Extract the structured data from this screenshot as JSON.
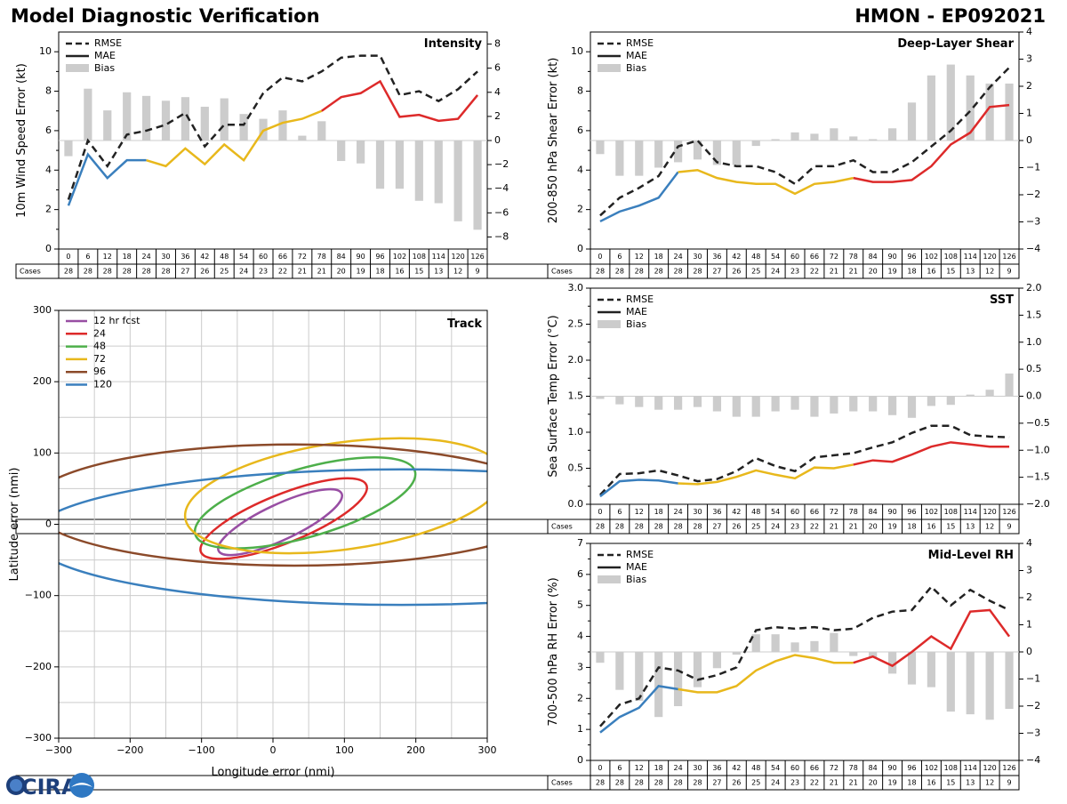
{
  "header": {
    "title": "Model Diagnostic Verification",
    "model": "HMON - EP092021"
  },
  "logo": {
    "text": "CIRA"
  },
  "colors": {
    "early": "#3a7fbd",
    "mid": "#e8b81c",
    "late": "#dd2a2a",
    "rmse": "#222222",
    "bias": "#cccccc"
  },
  "hours": [
    "0",
    "6",
    "12",
    "18",
    "24",
    "30",
    "36",
    "42",
    "48",
    "54",
    "60",
    "66",
    "72",
    "78",
    "84",
    "90",
    "96",
    "102",
    "108",
    "114",
    "120",
    "126"
  ],
  "legend_labels": {
    "rmse": "RMSE",
    "mae": "MAE",
    "bias": "Bias",
    "cases": "Cases"
  },
  "chart_data": [
    {
      "id": "intensity",
      "type": "line",
      "title": "Intensity",
      "ylabel": "10m Wind Speed Error (kt)",
      "ylim": [
        0,
        11
      ],
      "yticks": [
        0,
        2,
        4,
        6,
        8,
        10
      ],
      "y2lim": [
        -9,
        9
      ],
      "y2ticks": [
        -8,
        -6,
        -4,
        -2,
        0,
        2,
        4,
        6,
        8
      ],
      "rmse": [
        2.5,
        5.5,
        4.2,
        5.8,
        6.0,
        6.3,
        6.9,
        5.2,
        6.3,
        6.3,
        7.9,
        8.7,
        8.5,
        9.0,
        9.7,
        9.8,
        9.8,
        7.8,
        8.0,
        7.5,
        8.1,
        9.0
      ],
      "mae": [
        2.2,
        4.8,
        3.6,
        4.5,
        4.5,
        4.2,
        5.1,
        4.3,
        5.3,
        4.5,
        6.0,
        6.4,
        6.6,
        7.0,
        7.7,
        7.9,
        8.5,
        6.7,
        6.8,
        6.5,
        6.6,
        7.8
      ],
      "bias": [
        -1.3,
        4.3,
        2.5,
        4.0,
        3.7,
        3.3,
        3.6,
        2.8,
        3.5,
        2.2,
        1.8,
        2.5,
        0.4,
        1.6,
        -1.7,
        -1.9,
        -4.0,
        -4.0,
        -5.0,
        -5.2,
        -6.7,
        -7.4
      ],
      "cases": [
        28,
        28,
        28,
        28,
        28,
        28,
        27,
        26,
        25,
        24,
        23,
        22,
        21,
        21,
        20,
        19,
        18,
        16,
        15,
        13,
        12,
        9
      ]
    },
    {
      "id": "shear",
      "type": "line",
      "title": "Deep-Layer Shear",
      "ylabel": "200-850 hPa Shear Error (kt)",
      "ylim": [
        0,
        11
      ],
      "yticks": [
        0,
        2,
        4,
        6,
        8,
        10
      ],
      "y2lim": [
        -4,
        4
      ],
      "y2ticks": [
        -4,
        -3,
        -2,
        -1,
        0,
        1,
        2,
        3,
        4
      ],
      "rmse": [
        1.7,
        2.6,
        3.1,
        3.7,
        5.2,
        5.5,
        4.4,
        4.2,
        4.2,
        3.9,
        3.3,
        4.2,
        4.2,
        4.5,
        3.9,
        3.9,
        4.4,
        5.2,
        6.0,
        7.0,
        8.2,
        9.2
      ],
      "mae": [
        1.4,
        1.9,
        2.2,
        2.6,
        3.9,
        4.0,
        3.6,
        3.4,
        3.3,
        3.3,
        2.8,
        3.3,
        3.4,
        3.6,
        3.4,
        3.4,
        3.5,
        4.2,
        5.3,
        5.9,
        7.2,
        7.3
      ],
      "bias": [
        -0.5,
        -1.3,
        -1.3,
        -1.0,
        -0.8,
        -0.7,
        -0.9,
        -0.9,
        -0.2,
        0.05,
        0.3,
        0.25,
        0.45,
        0.15,
        0.05,
        0.45,
        1.4,
        2.4,
        2.8,
        2.4,
        2.1,
        2.1
      ],
      "cases": [
        28,
        28,
        28,
        28,
        28,
        28,
        27,
        26,
        25,
        24,
        23,
        22,
        21,
        21,
        20,
        19,
        18,
        16,
        15,
        13,
        12,
        9
      ]
    },
    {
      "id": "sst",
      "type": "line",
      "title": "SST",
      "ylabel": "Sea Surface Temp Error (°C)",
      "ylim": [
        0,
        3.0
      ],
      "yticks": [
        0.0,
        0.5,
        1.0,
        1.5,
        2.0,
        2.5,
        3.0
      ],
      "y2lim": [
        -2.0,
        2.0
      ],
      "y2ticks": [
        -2.0,
        -1.5,
        -1.0,
        -0.5,
        0.0,
        0.5,
        1.0,
        1.5,
        2.0
      ],
      "rmse": [
        0.13,
        0.42,
        0.43,
        0.47,
        0.4,
        0.32,
        0.35,
        0.46,
        0.64,
        0.53,
        0.46,
        0.65,
        0.68,
        0.71,
        0.79,
        0.86,
        0.99,
        1.09,
        1.09,
        0.96,
        0.94,
        0.93
      ],
      "mae": [
        0.11,
        0.32,
        0.34,
        0.33,
        0.29,
        0.28,
        0.31,
        0.38,
        0.47,
        0.41,
        0.36,
        0.51,
        0.5,
        0.55,
        0.61,
        0.59,
        0.69,
        0.8,
        0.86,
        0.83,
        0.8,
        0.8
      ],
      "bias": [
        -0.05,
        -0.15,
        -0.2,
        -0.25,
        -0.25,
        -0.2,
        -0.28,
        -0.38,
        -0.38,
        -0.28,
        -0.25,
        -0.38,
        -0.32,
        -0.28,
        -0.28,
        -0.35,
        -0.4,
        -0.18,
        -0.16,
        0.03,
        0.12,
        0.42
      ],
      "cases": [
        28,
        28,
        28,
        28,
        28,
        28,
        27,
        26,
        25,
        24,
        23,
        22,
        21,
        21,
        20,
        19,
        18,
        16,
        15,
        13,
        12,
        9
      ]
    },
    {
      "id": "rh",
      "type": "line",
      "title": "Mid-Level RH",
      "ylabel": "700-500 hPa RH Error (%)",
      "ylim": [
        0,
        7
      ],
      "yticks": [
        0,
        1,
        2,
        3,
        4,
        5,
        6,
        7
      ],
      "y2lim": [
        -4,
        4
      ],
      "y2ticks": [
        -4,
        -3,
        -2,
        -1,
        0,
        1,
        2,
        3,
        4
      ],
      "rmse": [
        1.1,
        1.8,
        2.0,
        3.0,
        2.9,
        2.6,
        2.75,
        3.0,
        4.2,
        4.3,
        4.25,
        4.3,
        4.2,
        4.25,
        4.6,
        4.8,
        4.85,
        5.6,
        5.0,
        5.5,
        5.15,
        4.85
      ],
      "mae": [
        0.9,
        1.4,
        1.7,
        2.4,
        2.3,
        2.2,
        2.2,
        2.4,
        2.9,
        3.2,
        3.4,
        3.3,
        3.15,
        3.15,
        3.35,
        3.05,
        3.5,
        4.0,
        3.6,
        4.8,
        4.85,
        4.0
      ],
      "bias": [
        -0.4,
        -1.4,
        -1.8,
        -2.4,
        -2.0,
        -1.3,
        -0.6,
        -0.1,
        0.65,
        0.65,
        0.35,
        0.4,
        0.7,
        -0.15,
        -0.2,
        -0.8,
        -1.2,
        -1.3,
        -2.2,
        -2.3,
        -2.5,
        -2.1
      ],
      "cases": [
        28,
        28,
        28,
        28,
        28,
        28,
        27,
        26,
        25,
        24,
        23,
        22,
        21,
        21,
        20,
        19,
        18,
        16,
        15,
        13,
        12,
        9
      ]
    },
    {
      "id": "track",
      "type": "ellipse",
      "title": "Track",
      "xlabel": "Longitude error (nmi)",
      "ylabel": "Latitude error (nmi)",
      "xlim": [
        -300,
        300
      ],
      "ylim": [
        -300,
        300
      ],
      "xticks": [
        -300,
        -200,
        -100,
        0,
        100,
        200,
        300
      ],
      "yticks": [
        -300,
        -200,
        -100,
        0,
        100,
        200,
        300
      ],
      "legend_position": "top-left",
      "ellipses": [
        {
          "label": "12 hr fcst",
          "color": "#984ea3",
          "cx": 10,
          "cy": 3,
          "rx": 95,
          "ry": 25,
          "angle": 25
        },
        {
          "label": "24",
          "color": "#dd2a2a",
          "cx": 15,
          "cy": 8,
          "rx": 125,
          "ry": 34,
          "angle": 22
        },
        {
          "label": "48",
          "color": "#4daf4a",
          "cx": 45,
          "cy": 30,
          "rx": 160,
          "ry": 48,
          "angle": 16
        },
        {
          "label": "72",
          "color": "#e8b81c",
          "cx": 100,
          "cy": 40,
          "rx": 225,
          "ry": 75,
          "angle": 8
        },
        {
          "label": "96",
          "color": "#8b4a2a",
          "cx": 30,
          "cy": 27,
          "rx": 370,
          "ry": 85,
          "angle": 0
        },
        {
          "label": "120",
          "color": "#3a7fbd",
          "cx": 180,
          "cy": -18,
          "rx": 520,
          "ry": 95,
          "angle": 0
        }
      ]
    }
  ]
}
